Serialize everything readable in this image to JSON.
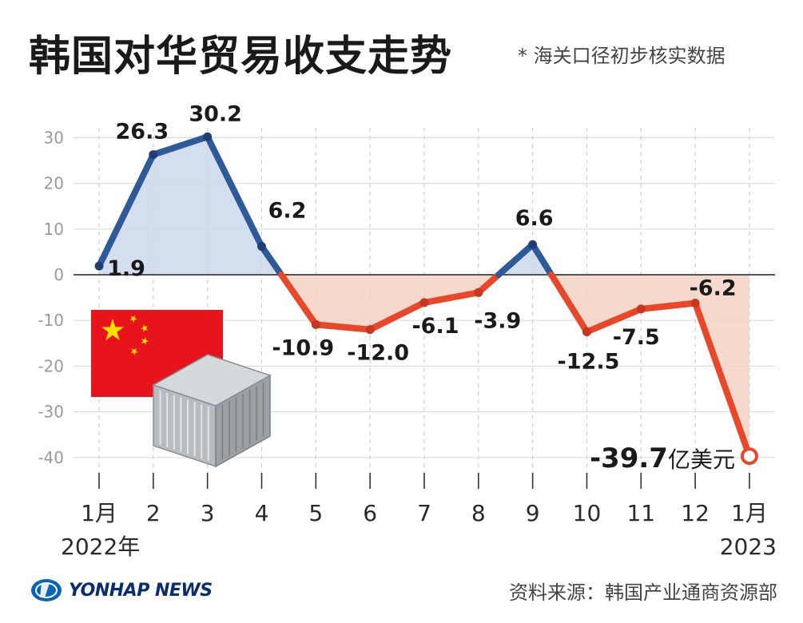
{
  "title": "韩国对华贸易收支走势",
  "note": "* 海关口径初步核实数据",
  "source": "资料来源：韩国产业通商资源部",
  "logo": {
    "text": "YONHAP NEWS",
    "icon": "yonhap-globe-icon"
  },
  "colors": {
    "positive": "#2f5a99",
    "negative": "#e8472a",
    "positive_fill": "#cbd8ec",
    "negative_fill": "#f3d2c4",
    "flag": "#e8141c",
    "star": "#ffde00"
  },
  "chart_data": {
    "type": "line",
    "categories": [
      "1月",
      "2",
      "3",
      "4",
      "5",
      "6",
      "7",
      "8",
      "9",
      "10",
      "11",
      "12",
      "1月"
    ],
    "year_labels": [
      "2022年",
      "",
      "",
      "",
      "",
      "",
      "",
      "",
      "",
      "",
      "",
      "",
      "2023"
    ],
    "values": [
      1.9,
      26.3,
      30.2,
      6.2,
      -10.9,
      -12.0,
      -6.1,
      -3.9,
      6.6,
      -12.5,
      -7.5,
      -6.2,
      -39.7
    ],
    "labels": [
      "1.9",
      "26.3",
      "30.2",
      "6.2",
      "-10.9",
      "-12.0",
      "-6.1",
      "-3.9",
      "6.6",
      "-12.5",
      "-7.5",
      "-6.2",
      "-39.7"
    ],
    "last_label_unit": "亿美元",
    "yticks": [
      30,
      20,
      10,
      0,
      -10,
      -20,
      -30,
      -40
    ],
    "ylim": [
      -40,
      30
    ],
    "grid": true,
    "xlabel": "",
    "ylabel": ""
  }
}
